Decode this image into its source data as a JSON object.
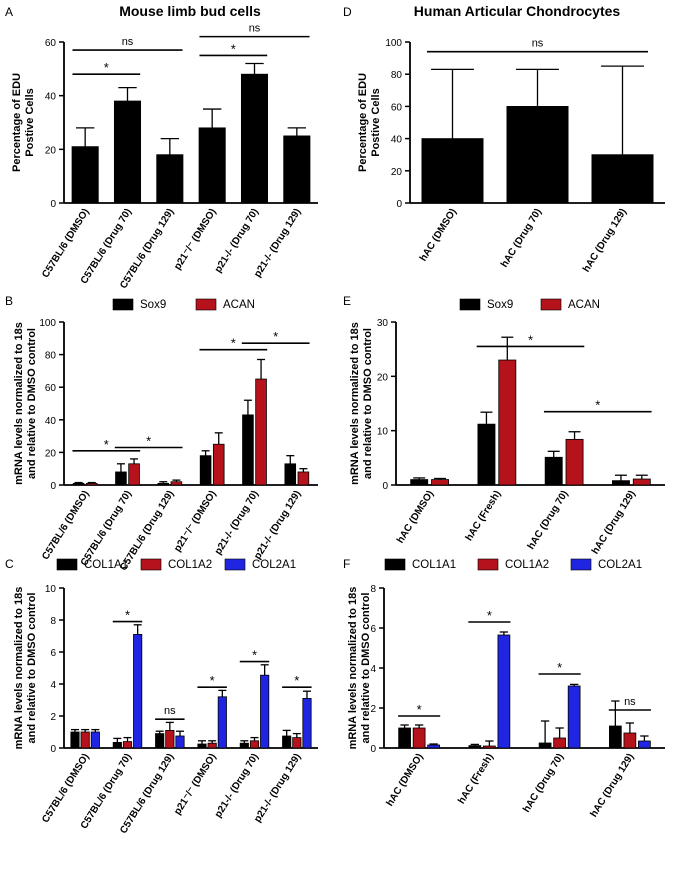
{
  "colors": {
    "black": "#000000",
    "red": "#b5121b",
    "blue": "#1f25e0"
  },
  "chart_data": [
    {
      "id": "A",
      "panel_label": "A",
      "title": "Mouse limb bud cells",
      "type": "bar",
      "ylabel": [
        "Percentage of EDU",
        "Postive Cells"
      ],
      "ylim": [
        0,
        60
      ],
      "yticks": [
        0,
        20,
        40,
        60
      ],
      "categories": [
        "C57BL/6 (DMSO)",
        "C57BL/6 (Drug 70)",
        "C57BL/6 (Drug 129)",
        "p21⁻/⁻ (DMSO)",
        "p21-/- (Drug 70)",
        "p21-/- (Drug 129)"
      ],
      "series": [
        {
          "name": "EDU",
          "color": "black",
          "values": [
            21,
            38,
            18,
            28,
            48,
            25
          ],
          "errors": [
            7,
            5,
            6,
            7,
            4,
            3
          ]
        }
      ],
      "annotations": [
        {
          "text": "ns",
          "from": 0,
          "to": 2,
          "y": 57
        },
        {
          "text": "*",
          "from": 0,
          "to": 1,
          "y": 48
        },
        {
          "text": "ns",
          "from": 3,
          "to": 5,
          "y": 62
        },
        {
          "text": "*",
          "from": 3,
          "to": 4,
          "y": 55
        }
      ]
    },
    {
      "id": "D",
      "panel_label": "D",
      "title": "Human Articular Chondrocytes",
      "type": "bar",
      "ylabel": [
        "Percentage of EDU",
        "Postive Cells"
      ],
      "ylim": [
        0,
        100
      ],
      "yticks": [
        0,
        20,
        40,
        60,
        80,
        100
      ],
      "categories": [
        "hAC (DMSO)",
        "hAC (Drug 70)",
        "hAC (Drug 129)"
      ],
      "series": [
        {
          "name": "EDU",
          "color": "black",
          "values": [
            40,
            60,
            30
          ],
          "errors": [
            43,
            23,
            55
          ]
        }
      ],
      "annotations": [
        {
          "text": "ns",
          "from": 0,
          "to": 2,
          "y": 94
        }
      ]
    },
    {
      "id": "B",
      "panel_label": "B",
      "type": "bar",
      "ylabel": [
        "mRNA levels normalized to 18s",
        "and relative to DMSO control"
      ],
      "ylim": [
        0,
        100
      ],
      "yticks": [
        0,
        20,
        40,
        60,
        80,
        100
      ],
      "legend": [
        "Sox9",
        "ACAN"
      ],
      "categories": [
        "C57BL/6 (DMSO)",
        "C57BL/6 (Drug 70)",
        "C57BL/6 (Drug 129)",
        "p21⁻/⁻ (DMSO)",
        "p21-/- (Drug 70)",
        "p21-/- (Drug 129)"
      ],
      "series": [
        {
          "name": "Sox9",
          "color": "black",
          "values": [
            1,
            8,
            1,
            18,
            43,
            13
          ],
          "errors": [
            0.5,
            5,
            1,
            3,
            9,
            5
          ]
        },
        {
          "name": "ACAN",
          "color": "red",
          "values": [
            1,
            13,
            2,
            25,
            65,
            8
          ],
          "errors": [
            0.5,
            3,
            1,
            7,
            12,
            2
          ]
        }
      ],
      "annotations": [
        {
          "text": "*",
          "from": 0,
          "to": 1,
          "y": 21
        },
        {
          "text": "*",
          "from": 1,
          "to": 2,
          "y": 23
        },
        {
          "text": "*",
          "from": 3,
          "to": 4,
          "y": 83
        },
        {
          "text": "*",
          "from": 4,
          "to": 5,
          "y": 87
        }
      ]
    },
    {
      "id": "E",
      "panel_label": "E",
      "type": "bar",
      "ylabel": [
        "mRNA levels normalized to 18s",
        "and relative to DMSO control"
      ],
      "ylim": [
        0,
        30
      ],
      "yticks": [
        0,
        10,
        20,
        30
      ],
      "legend": [
        "Sox9",
        "ACAN"
      ],
      "categories": [
        "hAC (DMSO)",
        "hAC (Fresh)",
        "hAC (Drug 70)",
        "hAC (Drug 129)"
      ],
      "series": [
        {
          "name": "Sox9",
          "color": "black",
          "values": [
            1,
            11.2,
            5.1,
            0.8
          ],
          "errors": [
            0.3,
            2.2,
            1.1,
            1
          ]
        },
        {
          "name": "ACAN",
          "color": "red",
          "values": [
            1,
            23,
            8.4,
            1.1
          ],
          "errors": [
            0.2,
            4.2,
            1.4,
            0.7
          ]
        }
      ],
      "annotations": [
        {
          "text": "*",
          "from": 1,
          "to": 2,
          "y": 25.5
        },
        {
          "text": "*",
          "from": 2,
          "to": 3,
          "y": 13.5
        }
      ]
    },
    {
      "id": "C",
      "panel_label": "C",
      "type": "bar",
      "ylabel": [
        "mRNA levels normalized to 18s",
        "and relative to DMSO control"
      ],
      "ylim": [
        0,
        10
      ],
      "yticks": [
        0,
        2,
        4,
        6,
        8,
        10
      ],
      "legend": [
        "COL1A1",
        "COL1A2",
        "COL2A1"
      ],
      "categories": [
        "C57BL/6 (DMSO)",
        "C57BL/6 (Drug 70)",
        "C57BL/6 (Drug 129)",
        "p21⁻/⁻ (DMSO)",
        "p21-/- (Drug 70)",
        "p21-/- (Drug 129)"
      ],
      "series": [
        {
          "name": "COL1A1",
          "color": "black",
          "values": [
            1,
            0.35,
            0.9,
            0.25,
            0.3,
            0.75
          ],
          "errors": [
            0.15,
            0.25,
            0.15,
            0.2,
            0.15,
            0.35
          ]
        },
        {
          "name": "COL1A2",
          "color": "red",
          "values": [
            1,
            0.4,
            1.1,
            0.3,
            0.45,
            0.65
          ],
          "errors": [
            0.15,
            0.25,
            0.5,
            0.15,
            0.2,
            0.25
          ]
        },
        {
          "name": "COL2A1",
          "color": "blue",
          "values": [
            1,
            7.1,
            0.75,
            3.2,
            4.55,
            3.1
          ],
          "errors": [
            0.15,
            0.6,
            0.3,
            0.4,
            0.65,
            0.45
          ]
        }
      ],
      "annotations": [
        {
          "text": "*",
          "group": 1,
          "y": 7.9
        },
        {
          "text": "ns",
          "group": 2,
          "y": 1.8
        },
        {
          "text": "*",
          "group": 3,
          "y": 3.8
        },
        {
          "text": "*",
          "group": 4,
          "y": 5.4
        },
        {
          "text": "*",
          "group": 5,
          "y": 3.8
        }
      ]
    },
    {
      "id": "F",
      "panel_label": "F",
      "type": "bar",
      "ylabel": [
        "mRNA levels normalized to 18s",
        "and relative to DMSO control"
      ],
      "ylim": [
        0,
        8
      ],
      "yticks": [
        0,
        2,
        4,
        6,
        8
      ],
      "legend": [
        "COL1A1",
        "COL1A2",
        "COL2A1"
      ],
      "categories": [
        "hAC (DMSO)",
        "hAC (Fresh)",
        "hAC (Drug 70)",
        "hAC (Drug 129)"
      ],
      "series": [
        {
          "name": "COL1A1",
          "color": "black",
          "values": [
            1,
            0.12,
            0.25,
            1.1
          ],
          "errors": [
            0.15,
            0.06,
            1.1,
            1.25
          ]
        },
        {
          "name": "COL1A2",
          "color": "red",
          "values": [
            1,
            0.1,
            0.5,
            0.75
          ],
          "errors": [
            0.15,
            0.25,
            0.5,
            0.5
          ]
        },
        {
          "name": "COL2A1",
          "color": "blue",
          "values": [
            0.15,
            5.65,
            3.1,
            0.35
          ],
          "errors": [
            0.05,
            0.15,
            0.08,
            0.25
          ]
        }
      ],
      "annotations": [
        {
          "text": "*",
          "group": 0,
          "y": 1.6
        },
        {
          "text": "*",
          "group": 1,
          "y": 6.3
        },
        {
          "text": "*",
          "group": 2,
          "y": 3.7
        },
        {
          "text": "ns",
          "group": 3,
          "y": 1.9
        }
      ]
    }
  ]
}
